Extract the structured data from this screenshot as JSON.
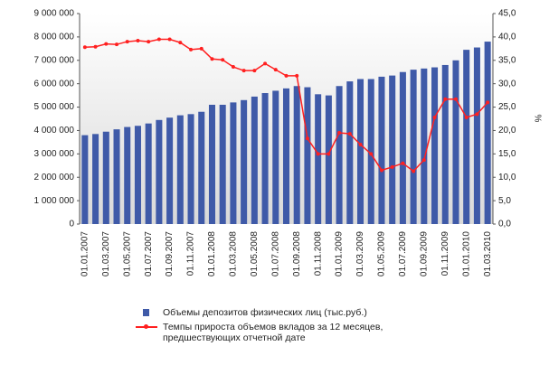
{
  "chart_data": {
    "type": "bar-line",
    "categories": [
      "01.01.2007",
      null,
      "01.03.2007",
      null,
      "01.05.2007",
      null,
      "01.07.2007",
      null,
      "01.09.2007",
      null,
      "01.11.2007",
      null,
      "01.01.2008",
      null,
      "01.03.2008",
      null,
      "01.05.2008",
      null,
      "01.07.2008",
      null,
      "01.09.2008",
      null,
      "01.11.2008",
      null,
      "01.01.2009",
      null,
      "01.03.2009",
      null,
      "01.05.2009",
      null,
      "01.07.2009",
      null,
      "01.09.2009",
      null,
      "01.11.2009",
      null,
      "01.01.2010",
      null,
      "01.03.2010"
    ],
    "series": [
      {
        "name": "Объемы депозитов физических лиц (тыс.руб.)",
        "type": "bar",
        "color": "#3f5aa8",
        "values": [
          3800000,
          3850000,
          3950000,
          4050000,
          4150000,
          4200000,
          4300000,
          4450000,
          4550000,
          4650000,
          4700000,
          4800000,
          5100000,
          5100000,
          5200000,
          5300000,
          5450000,
          5600000,
          5700000,
          5800000,
          5900000,
          5850000,
          5550000,
          5500000,
          5900000,
          6100000,
          6200000,
          6200000,
          6300000,
          6350000,
          6500000,
          6600000,
          6650000,
          6700000,
          6800000,
          7000000,
          7450000,
          7550000,
          7800000
        ]
      },
      {
        "name": "Темпы прироста объемов вкладов за 12 месяцев, предшествующих отчетной дате",
        "type": "line",
        "axis": "y2",
        "color": "#ff2020",
        "values": [
          37.8,
          37.9,
          38.5,
          38.4,
          39.0,
          39.2,
          39.0,
          39.5,
          39.5,
          38.8,
          37.3,
          37.5,
          35.3,
          35.1,
          33.6,
          32.8,
          32.8,
          34.3,
          33.0,
          31.7,
          31.7,
          18.3,
          15.0,
          15.0,
          19.5,
          19.3,
          17.0,
          15.0,
          11.5,
          12.2,
          13.0,
          11.3,
          13.7,
          22.8,
          26.7,
          26.7,
          22.8,
          23.5,
          26.0
        ]
      }
    ],
    "ylim": [
      0,
      9000000
    ],
    "yticks": [
      {
        "value": 0,
        "label": "0"
      },
      {
        "value": 1000000,
        "label": "1 000 000"
      },
      {
        "value": 2000000,
        "label": "2 000 000"
      },
      {
        "value": 3000000,
        "label": "3 000 000"
      },
      {
        "value": 4000000,
        "label": "4 000 000"
      },
      {
        "value": 5000000,
        "label": "5 000 000"
      },
      {
        "value": 6000000,
        "label": "6 000 000"
      },
      {
        "value": 7000000,
        "label": "7 000 000"
      },
      {
        "value": 8000000,
        "label": "8 000 000"
      },
      {
        "value": 9000000,
        "label": "9 000 000"
      }
    ],
    "y2lim": [
      0,
      45
    ],
    "y2ticks": [
      {
        "value": 0,
        "label": "0,0"
      },
      {
        "value": 5,
        "label": "5,0"
      },
      {
        "value": 10,
        "label": "10,0"
      },
      {
        "value": 15,
        "label": "15,0"
      },
      {
        "value": 20,
        "label": "20,0"
      },
      {
        "value": 25,
        "label": "25,0"
      },
      {
        "value": 30,
        "label": "30,0"
      },
      {
        "value": 35,
        "label": "35,0"
      },
      {
        "value": 40,
        "label": "40,0"
      },
      {
        "value": 45,
        "label": "45,0"
      }
    ],
    "y2label": "%"
  }
}
